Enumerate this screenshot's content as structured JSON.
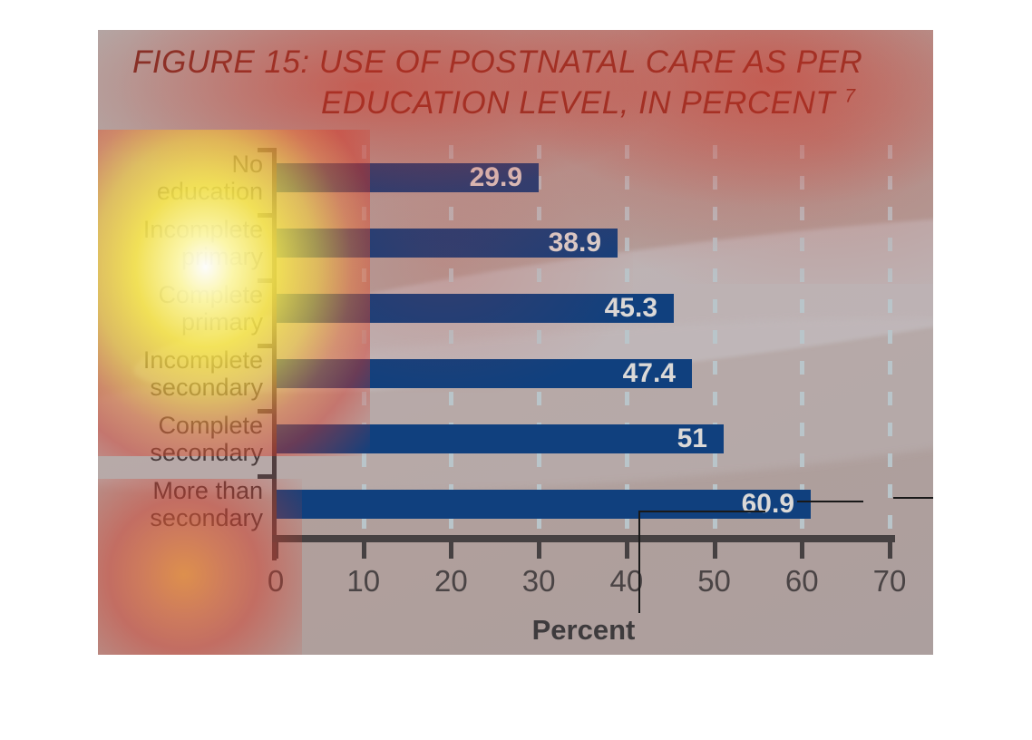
{
  "figure": {
    "title_line1": "FIGURE 15: USE OF POSTNATAL CARE AS PER",
    "title_line2": "EDUCATION LEVEL, IN PERCENT",
    "title_superscript": "7",
    "title_color": "#7d3028",
    "background_color": "#b19f9b"
  },
  "chart_data": {
    "type": "bar",
    "orientation": "horizontal",
    "title": "FIGURE 15: USE OF POSTNATAL CARE AS PER EDUCATION LEVEL, IN PERCENT",
    "categories": [
      "No education",
      "Incomplete primary",
      "Complete primary",
      "Incomplete secondary",
      "Complete secondary",
      "More than secondary"
    ],
    "category_lines": [
      [
        "No",
        "education"
      ],
      [
        "Incomplete",
        "primary"
      ],
      [
        "Complete",
        "primary"
      ],
      [
        "Incomplete",
        "secondary"
      ],
      [
        "Complete",
        "secondary"
      ],
      [
        "More than",
        "secondary"
      ]
    ],
    "values": [
      29.9,
      38.9,
      45.3,
      47.4,
      51,
      60.9
    ],
    "value_labels": [
      "29.9",
      "38.9",
      "45.3",
      "47.4",
      "51",
      "60.9"
    ],
    "xlabel": "Percent",
    "x_ticks": [
      0,
      10,
      20,
      30,
      40,
      50,
      60,
      70
    ],
    "xlim": [
      0,
      70
    ],
    "grid": "dashed-vertical",
    "legend": null,
    "bar_color": "#10407e",
    "value_label_color": "#dbd9d7",
    "gridline_color": "#b9c5ca",
    "axis_color": "#464142",
    "tick_label_color": "#4a4445",
    "category_label_color": "#4a3b3b"
  },
  "overlay": {
    "type": "gaze-heatmap",
    "hotspot_colors": [
      "#ffffff",
      "#fceb4b",
      "#e78c3c",
      "#d4372a"
    ],
    "annotation_line_color": "#191919"
  }
}
